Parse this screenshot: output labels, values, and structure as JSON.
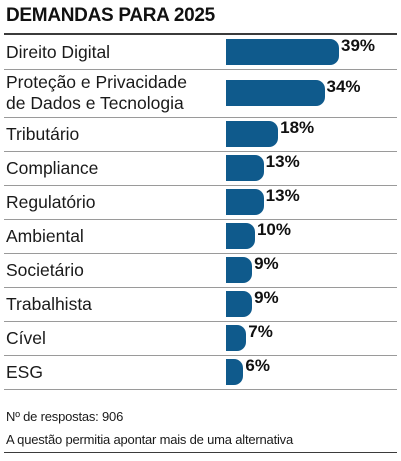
{
  "accent_color": "#0f5a8c",
  "chart_data": {
    "type": "bar",
    "orientation": "horizontal",
    "title": "DEMANDAS PARA 2025",
    "categories": [
      "Direito Digital",
      "Proteção e Privacidade\nde Dados e Tecnologia",
      "Tributário",
      "Compliance",
      "Regulatório",
      "Ambiental",
      "Societário",
      "Trabalhista",
      "Cível",
      "ESG"
    ],
    "values": [
      39,
      34,
      18,
      13,
      13,
      10,
      9,
      9,
      7,
      6
    ],
    "value_labels": [
      "39%",
      "34%",
      "18%",
      "13%",
      "13%",
      "10%",
      "9%",
      "9%",
      "7%",
      "6%"
    ],
    "unit": "%",
    "xlim": [
      0,
      39
    ],
    "grid": false,
    "legend": "none"
  },
  "footnotes": {
    "responses": "Nº de respostas: 906",
    "note": "A questão permitia apontar mais de uma alternativa"
  }
}
